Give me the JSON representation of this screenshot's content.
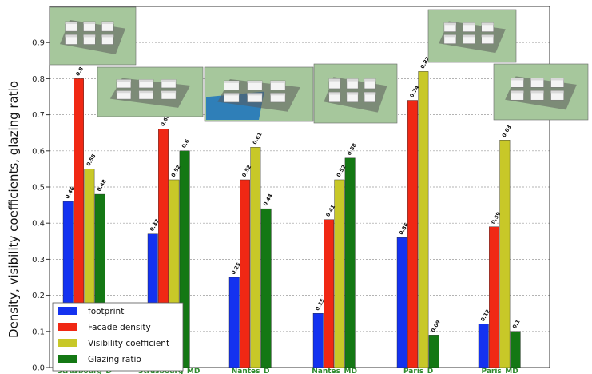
{
  "chart_data": {
    "type": "bar",
    "title": "",
    "ylabel": "Density, visibility coefficients, glazing ratio",
    "xlabel": "",
    "ylim": [
      0,
      1.0
    ],
    "yticks": [
      0.0,
      0.1,
      0.2,
      0.3,
      0.4,
      0.5,
      0.6,
      0.7,
      0.8,
      0.9
    ],
    "grid": true,
    "legend_position": "bottom-left",
    "categories": [
      "Strasbourg_D",
      "Strasbourg_MD",
      "Nantes_D",
      "Nantes_MD",
      "Paris_D",
      "Paris_MD"
    ],
    "category_label_color": "#2e8b2e",
    "series": [
      {
        "name": "footprint",
        "color": "#1432f0",
        "values": [
          0.46,
          0.37,
          0.25,
          0.15,
          0.36,
          0.12
        ]
      },
      {
        "name": "Facade density",
        "color": "#f02814",
        "values": [
          0.8,
          0.66,
          0.52,
          0.41,
          0.74,
          0.39
        ]
      },
      {
        "name": "Visibility coefficient",
        "color": "#c8c828",
        "values": [
          0.55,
          0.52,
          0.61,
          0.52,
          0.82,
          0.63
        ]
      },
      {
        "name": "Glazing ratio",
        "color": "#147814",
        "values": [
          0.48,
          0.6,
          0.44,
          0.58,
          0.09,
          0.1
        ]
      }
    ],
    "data_labels": [
      [
        "0.46",
        "0.8",
        "0.55",
        "0.48"
      ],
      [
        "0.37",
        "0.66",
        "0.52",
        "0.6"
      ],
      [
        "0.25",
        "0.52",
        "0.61",
        "0.44"
      ],
      [
        "0.15",
        "0.41",
        "0.52",
        "0.58"
      ],
      [
        "0.36",
        "0.74",
        "0.82",
        "0.09"
      ],
      [
        "0.12",
        "0.39",
        "0.63",
        "0.1"
      ]
    ],
    "thumbnails": [
      {
        "category": "Strasbourg_D",
        "depicts": "3d-city-block-model"
      },
      {
        "category": "Strasbourg_MD",
        "depicts": "3d-city-block-model"
      },
      {
        "category": "Nantes_D",
        "depicts": "3d-city-block-model-with-river"
      },
      {
        "category": "Nantes_MD",
        "depicts": "3d-city-block-model"
      },
      {
        "category": "Paris_D",
        "depicts": "3d-city-block-model"
      },
      {
        "category": "Paris_MD",
        "depicts": "3d-city-block-model"
      }
    ]
  }
}
